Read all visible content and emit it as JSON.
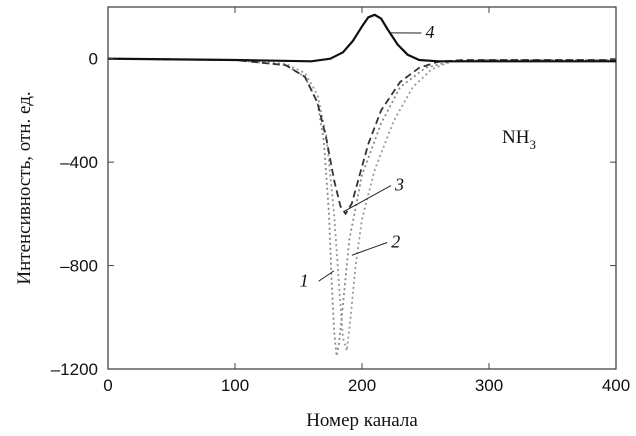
{
  "chart_data": {
    "type": "line",
    "title": "",
    "xlabel": "Номер канала",
    "ylabel": "Интенсивность, отн. ед.",
    "xlim": [
      0,
      400
    ],
    "ylim": [
      -1200,
      200
    ],
    "xticks": [
      0,
      100,
      200,
      300,
      400
    ],
    "xtick_labels": [
      "0",
      "100",
      "200",
      "300",
      "400"
    ],
    "yticks": [
      -1200,
      -800,
      -400,
      0
    ],
    "ytick_labels": [
      "–1200",
      "–800",
      "–400",
      "0"
    ],
    "grid": false,
    "annotation": {
      "base": "NH",
      "sub": "3"
    },
    "series": [
      {
        "name": "1",
        "style": "dotted",
        "color": "#888888",
        "x": [
          0,
          100,
          140,
          155,
          165,
          170,
          174,
          176,
          178,
          180,
          182,
          185,
          190,
          200,
          215,
          230,
          250,
          270,
          300,
          400
        ],
        "y": [
          0,
          -5,
          -25,
          -70,
          -170,
          -320,
          -600,
          -850,
          -1050,
          -1150,
          -1100,
          -950,
          -700,
          -450,
          -250,
          -110,
          -35,
          -10,
          -5,
          -5
        ]
      },
      {
        "name": "2",
        "style": "dotted",
        "color": "#999999",
        "x": [
          0,
          100,
          140,
          155,
          165,
          172,
          178,
          182,
          185,
          188,
          191,
          195,
          200,
          210,
          225,
          240,
          255,
          270,
          300,
          400
        ],
        "y": [
          0,
          -5,
          -20,
          -55,
          -140,
          -300,
          -600,
          -880,
          -1080,
          -1130,
          -1000,
          -800,
          -620,
          -430,
          -240,
          -110,
          -40,
          -12,
          -5,
          -5
        ]
      },
      {
        "name": "3",
        "style": "dashed",
        "color": "#333333",
        "x": [
          0,
          100,
          140,
          155,
          165,
          172,
          178,
          183,
          187,
          192,
          197,
          205,
          215,
          230,
          245,
          260,
          280,
          300,
          400
        ],
        "y": [
          0,
          -5,
          -25,
          -70,
          -170,
          -310,
          -470,
          -570,
          -600,
          -560,
          -470,
          -330,
          -200,
          -90,
          -35,
          -12,
          -5,
          -5,
          -5
        ]
      },
      {
        "name": "4",
        "style": "solid",
        "color": "#111111",
        "x": [
          0,
          100,
          160,
          175,
          185,
          193,
          200,
          205,
          210,
          215,
          220,
          228,
          236,
          245,
          260,
          300,
          400
        ],
        "y": [
          0,
          -5,
          -10,
          0,
          25,
          70,
          125,
          160,
          170,
          155,
          115,
          55,
          15,
          -5,
          -10,
          -10,
          -10
        ]
      }
    ],
    "curve_labels": [
      {
        "text": "1",
        "x": 158,
        "y": -880
      },
      {
        "text": "2",
        "x": 223,
        "y": -730
      },
      {
        "text": "3",
        "x": 226,
        "y": -510
      },
      {
        "text": "4",
        "x": 250,
        "y": 80
      }
    ]
  }
}
